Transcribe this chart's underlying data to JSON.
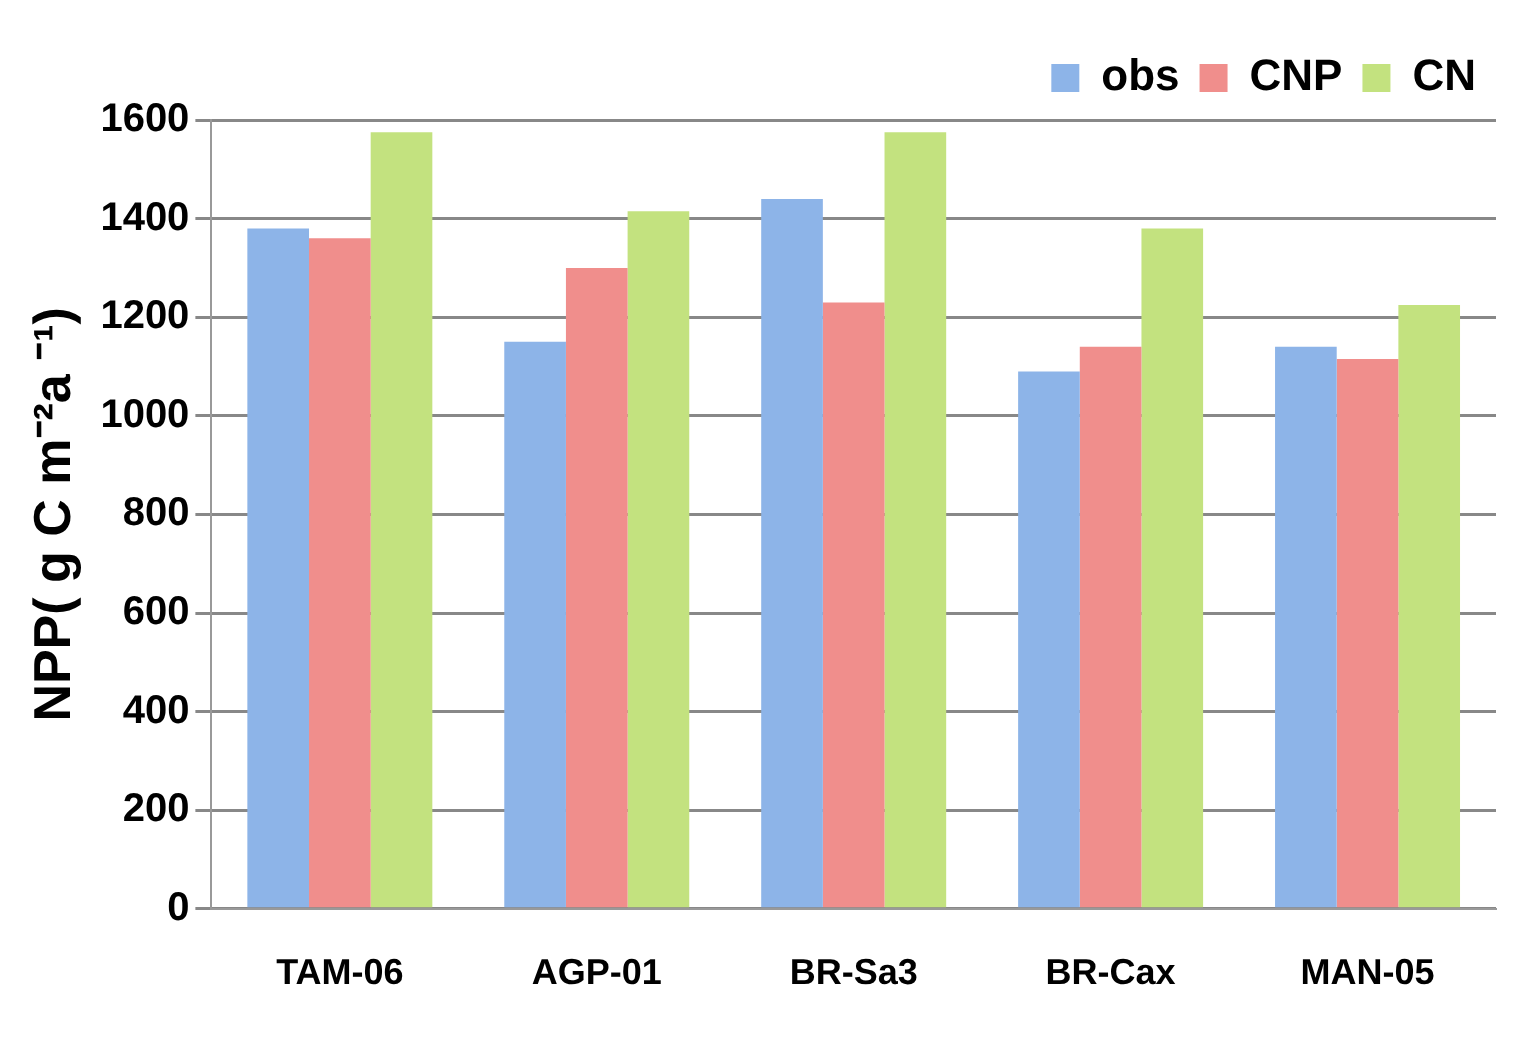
{
  "chart_data": {
    "type": "bar",
    "ylabel": "NPP( g C m⁻²a ⁻¹)",
    "categories": [
      "TAM-06",
      "AGP-01",
      "BR-Sa3",
      "BR-Cax",
      "MAN-05"
    ],
    "series": [
      {
        "name": "obs",
        "color": "#8db4e8",
        "values": [
          1380,
          1150,
          1440,
          1090,
          1140
        ]
      },
      {
        "name": "CNP",
        "color": "#f08e8c",
        "values": [
          1360,
          1300,
          1230,
          1140,
          1115
        ]
      },
      {
        "name": "CN",
        "color": "#c3e27f",
        "values": [
          1575,
          1415,
          1575,
          1380,
          1225
        ]
      }
    ],
    "ylim": [
      0,
      1600
    ],
    "yticks": [
      0,
      200,
      400,
      600,
      800,
      1000,
      1200,
      1400,
      1600
    ],
    "grid": "y",
    "legend": "top right"
  }
}
